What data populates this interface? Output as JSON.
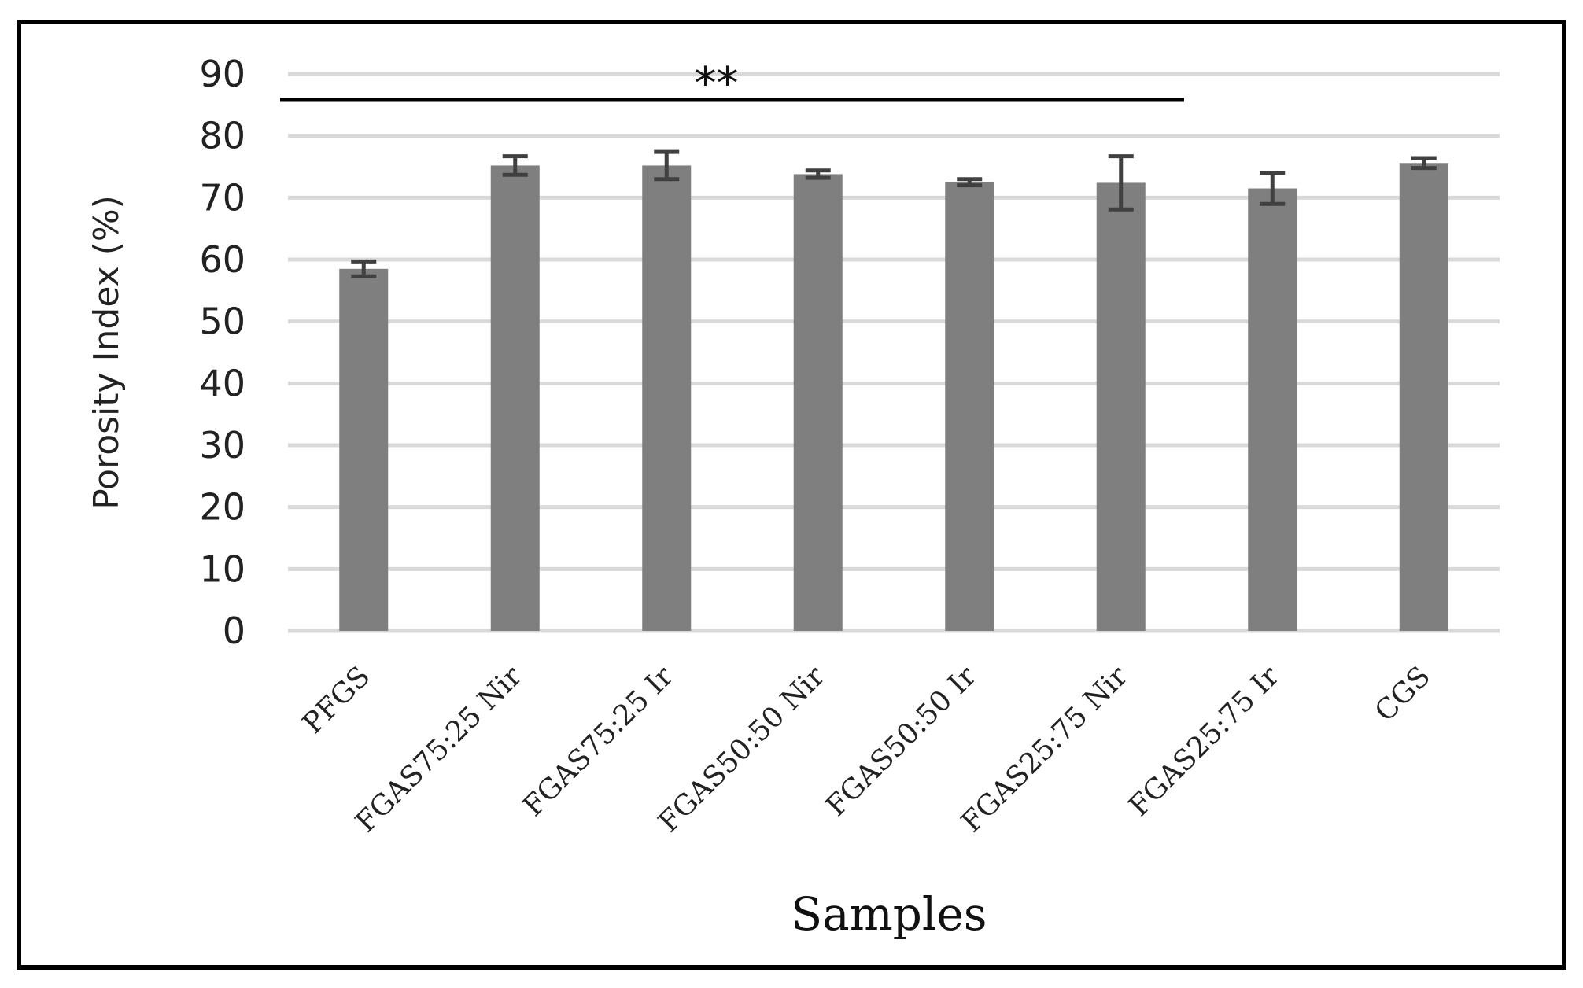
{
  "chart_data": {
    "type": "bar",
    "title": "",
    "xlabel": "Samples",
    "ylabel": "Porosity Index (%)",
    "ylim": [
      0,
      90
    ],
    "yticks": [
      0,
      10,
      20,
      30,
      40,
      50,
      60,
      70,
      80,
      90
    ],
    "grid": true,
    "categories": [
      "PFGS",
      "FGAS75:25 Nir",
      "FGAS75:25 Ir",
      "FGAS50:50 Nir",
      "FGAS50:50 Ir",
      "FGAS25:75 Nir",
      "FGAS25:75 Ir",
      "CGS"
    ],
    "values": [
      58.5,
      75.2,
      75.2,
      73.8,
      72.5,
      72.4,
      71.5,
      75.6
    ],
    "error": [
      1.2,
      1.5,
      2.2,
      0.6,
      0.5,
      4.3,
      2.5,
      0.8
    ],
    "bar_color": "#7f7f7f",
    "error_color": "#404040",
    "significance": {
      "label": "**",
      "span_from": "PFGS",
      "span_to": "FGAS25:75 Nir"
    }
  }
}
